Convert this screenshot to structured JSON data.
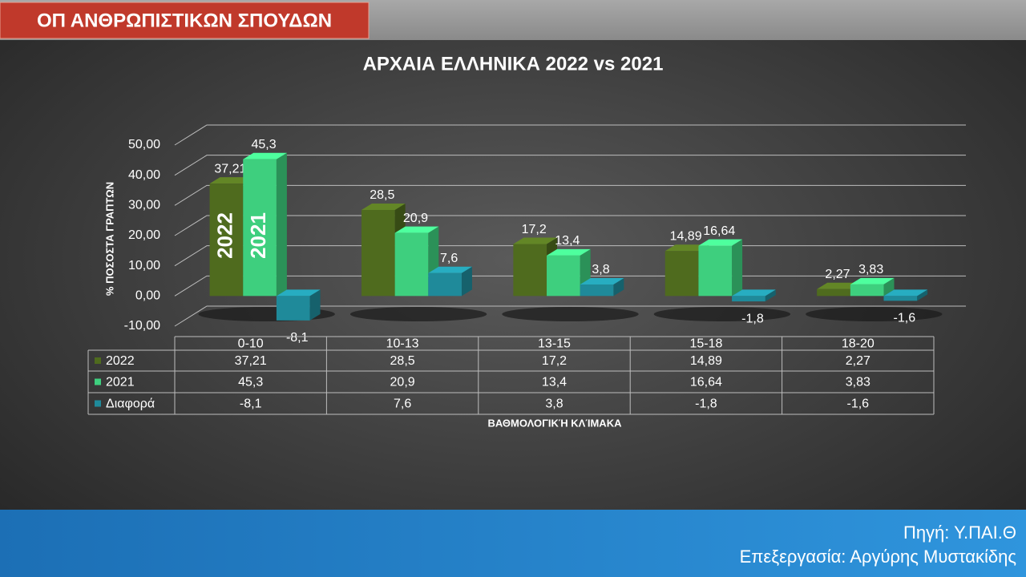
{
  "header": {
    "title": "ΟΠ ΑΝΘΡΩΠΙΣΤΙΚΩΝ ΣΠΟΥΔΩΝ"
  },
  "chart_data": {
    "type": "bar",
    "title": "ΑΡΧΑΙΑ ΕΛΛΗΝΙΚΑ 2022 vs 2021",
    "y_label": "% ΠΟΣΟΣΤΑ ΓΡΑΠΤΩΝ",
    "x_label": "ΒΑΘΜΟΛΟΓΙΚΉ ΚΛΊΜΑΚΑ",
    "categories": [
      "0-10",
      "10-13",
      "13-15",
      "15-18",
      "18-20"
    ],
    "series": [
      {
        "name": "2022",
        "color": "#4f6b1e",
        "values": [
          37.21,
          28.5,
          17.2,
          14.89,
          2.27
        ],
        "value_labels": [
          "37,21",
          "28,5",
          "17,2",
          "14,89",
          "2,27"
        ]
      },
      {
        "name": "2021",
        "color": "#3ecf7e",
        "values": [
          45.3,
          20.9,
          13.4,
          16.64,
          3.83
        ],
        "value_labels": [
          "45,3",
          "20,9",
          "13,4",
          "16,64",
          "3,83"
        ]
      },
      {
        "name": "Διαφορά",
        "color": "#1f8a9a",
        "values": [
          -8.1,
          7.6,
          3.8,
          -1.8,
          -1.6
        ],
        "value_labels": [
          "-8,1",
          "7,6",
          "3,8",
          "-1,8",
          "-1,6"
        ]
      }
    ],
    "ylim": [
      -10,
      50
    ],
    "yticks": [
      {
        "value": -10,
        "label": "-10,00"
      },
      {
        "value": 0,
        "label": "0,00"
      },
      {
        "value": 10,
        "label": "10,00"
      },
      {
        "value": 20,
        "label": "20,00"
      },
      {
        "value": 30,
        "label": "30,00"
      },
      {
        "value": 40,
        "label": "40,00"
      },
      {
        "value": 50,
        "label": "50,00"
      }
    ],
    "grid": true,
    "data_table": true
  },
  "footer": {
    "source": "Πηγή: Υ.ΠΑΙ.Θ",
    "author": "Επεξεργασία: Αργύρης Μυστακίδης"
  }
}
